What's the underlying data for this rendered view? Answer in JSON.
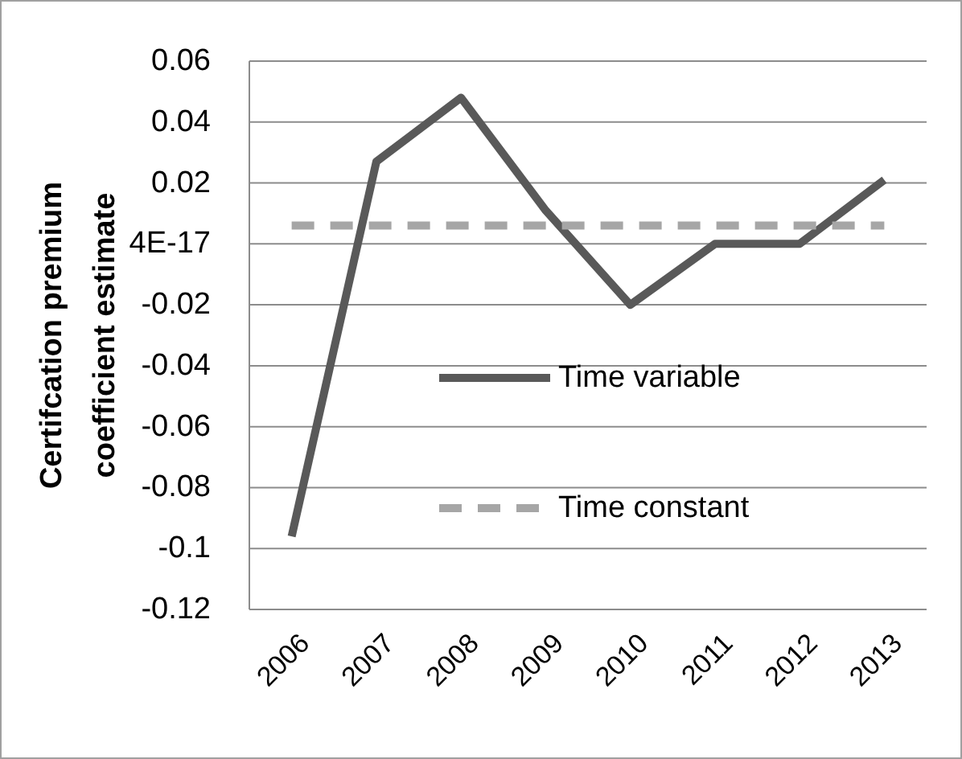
{
  "chart_data": {
    "type": "line",
    "ylabel": "Certifcation premium coefficient estimate",
    "categories": [
      "2006",
      "2007",
      "2008",
      "2009",
      "2010",
      "2011",
      "2012",
      "2013"
    ],
    "series": [
      {
        "name": "Time variable",
        "color": "#595959",
        "line_style": "solid",
        "values": [
          -0.096,
          0.027,
          0.048,
          0.011,
          -0.02,
          0,
          0,
          0.021
        ]
      },
      {
        "name": "Time constant",
        "color": "#a6a6a6",
        "line_style": "dashed",
        "values": [
          0.006,
          0.006,
          0.006,
          0.006,
          0.006,
          0.006,
          0.006,
          0.006
        ]
      }
    ],
    "ylim": [
      -0.12,
      0.06
    ],
    "yticks": [
      -0.12,
      -0.1,
      -0.08,
      -0.06,
      -0.04,
      -0.02,
      {
        "value": 0,
        "label": "4E-17"
      },
      0.02,
      0.04,
      0.06
    ],
    "grid": "y",
    "legend": "center",
    "marker": "none"
  }
}
